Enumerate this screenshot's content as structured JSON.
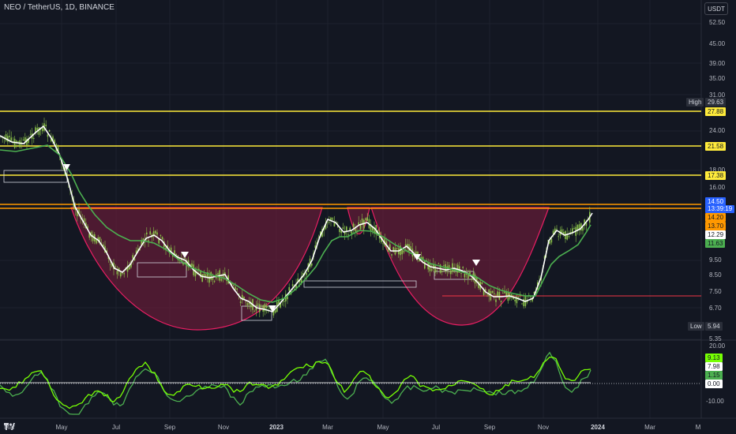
{
  "header": {
    "symbol_title": "NEO / TetherUS, 1D, BINANCE",
    "currency_button": "USDT"
  },
  "price_axis": {
    "ticks": [
      "52.50",
      "45.00",
      "39.00",
      "35.00",
      "31.00",
      "24.00",
      "18.00",
      "16.00",
      "9.50",
      "8.50",
      "7.50",
      "6.70",
      "5.35"
    ],
    "high_label": "High",
    "high_value": "29.63",
    "low_label": "Low",
    "low_value": "5.94",
    "current_price": "14.50",
    "countdown": "13:39:19",
    "level_tags": [
      {
        "value": "27.88",
        "bg": "#ffeb3b",
        "fg": "#131722"
      },
      {
        "value": "21.58",
        "bg": "#ffeb3b",
        "fg": "#131722"
      },
      {
        "value": "17.38",
        "bg": "#ffeb3b",
        "fg": "#131722"
      },
      {
        "value": "14.20",
        "bg": "#ff9800",
        "fg": "#131722"
      },
      {
        "value": "13.70",
        "bg": "#ff9800",
        "fg": "#131722"
      },
      {
        "value": "12.29",
        "bg": "#ffffff",
        "fg": "#131722"
      },
      {
        "value": "11.63",
        "bg": "#4caf50",
        "fg": "#131722"
      }
    ]
  },
  "oscillator_axis": {
    "ticks": [
      "20.00",
      "-10.00"
    ],
    "tags": [
      {
        "value": "9.13",
        "bg": "#76ff03",
        "fg": "#131722"
      },
      {
        "value": "7.98",
        "bg": "#ffffff",
        "fg": "#131722"
      },
      {
        "value": "1.15",
        "bg": "#4caf50",
        "fg": "#131722"
      },
      {
        "value": "0.00",
        "bg": "#ffffff",
        "fg": "#131722"
      }
    ]
  },
  "time_axis": {
    "ticks": [
      {
        "label": "Mar",
        "bold": false
      },
      {
        "label": "May",
        "bold": false
      },
      {
        "label": "Jul",
        "bold": false
      },
      {
        "label": "Sep",
        "bold": false
      },
      {
        "label": "Nov",
        "bold": false
      },
      {
        "label": "2023",
        "bold": true
      },
      {
        "label": "Mar",
        "bold": false
      },
      {
        "label": "May",
        "bold": false
      },
      {
        "label": "Jul",
        "bold": false
      },
      {
        "label": "Sep",
        "bold": false
      },
      {
        "label": "Nov",
        "bold": false
      },
      {
        "label": "2024",
        "bold": true
      },
      {
        "label": "Mar",
        "bold": false
      },
      {
        "label": "M",
        "bold": false
      }
    ]
  },
  "colors": {
    "background": "#131722",
    "candles": "#8bc34a",
    "ma_white": "#ffffff",
    "ma_green": "#4caf50",
    "resistance": "#ffeb3b",
    "neckline": "#ff9800",
    "cup_fill": "#6d1b3a",
    "cup_stroke": "#e91e63",
    "support_line": "#f23645"
  },
  "icons": {
    "logo": "tradingview-logo-icon",
    "sell_marker": "down-triangle-icon"
  }
}
